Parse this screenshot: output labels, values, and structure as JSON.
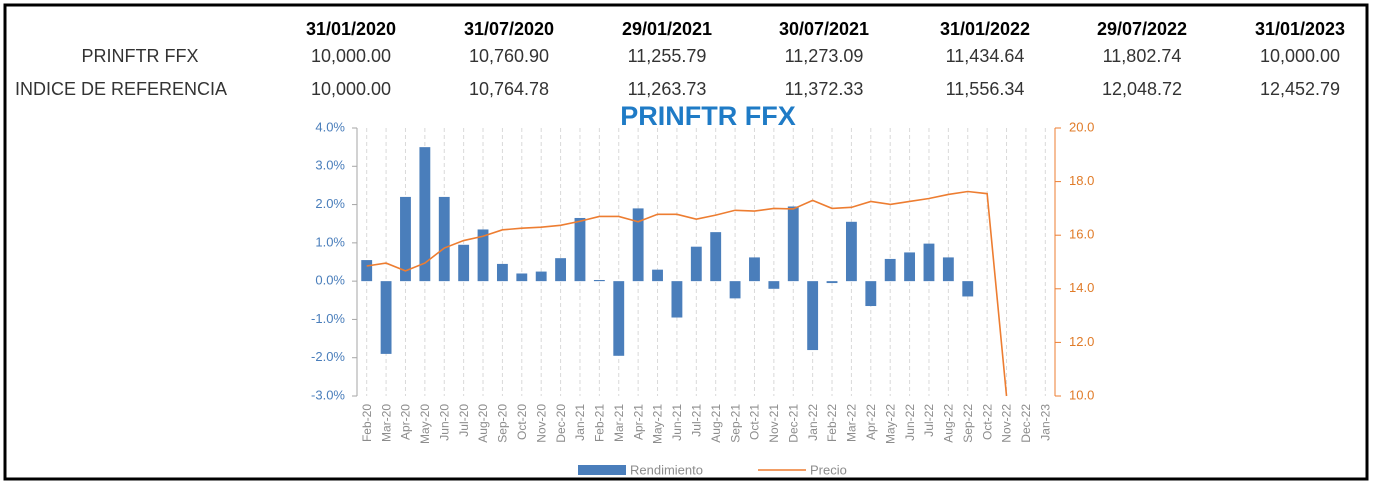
{
  "table": {
    "columns": [
      "31/01/2020",
      "31/07/2020",
      "29/01/2021",
      "30/07/2021",
      "31/01/2022",
      "29/07/2022",
      "31/01/2023"
    ],
    "rows": [
      {
        "label": "PRINFTR FFX",
        "values": [
          "10,000.00",
          "10,760.90",
          "11,255.79",
          "11,273.09",
          "11,434.64",
          "11,802.74",
          "10,000.00"
        ]
      },
      {
        "label": "INDICE DE REFERENCIA",
        "values": [
          "10,000.00",
          "10,764.78",
          "11,263.73",
          "11,372.33",
          "11,556.34",
          "12,048.72",
          "12,452.79"
        ]
      }
    ]
  },
  "chart_data": {
    "type": "bar_line",
    "title": "PRINFTR FFX",
    "categories": [
      "Feb-20",
      "Mar-20",
      "Apr-20",
      "May-20",
      "Jun-20",
      "Jul-20",
      "Aug-20",
      "Sep-20",
      "Oct-20",
      "Nov-20",
      "Dec-20",
      "Jan-21",
      "Feb-21",
      "Mar-21",
      "Apr-21",
      "May-21",
      "Jun-21",
      "Jul-21",
      "Aug-21",
      "Sep-21",
      "Oct-21",
      "Nov-21",
      "Dec-21",
      "Jan-22",
      "Feb-22",
      "Mar-22",
      "Apr-22",
      "May-22",
      "Jun-22",
      "Jul-22",
      "Aug-22",
      "Sep-22",
      "Oct-22",
      "Nov-22",
      "Dec-22",
      "Jan-23"
    ],
    "series": [
      {
        "name": "Rendimiento",
        "type": "bar",
        "color": "#4a7ebb",
        "values": [
          0.55,
          -1.9,
          2.2,
          3.5,
          2.2,
          0.95,
          1.35,
          0.45,
          0.2,
          0.25,
          0.6,
          1.65,
          0.03,
          -1.95,
          1.9,
          0.3,
          -0.95,
          0.9,
          1.28,
          -0.45,
          0.62,
          -0.2,
          1.95,
          -1.8,
          -0.05,
          1.55,
          -0.65,
          0.58,
          0.75,
          0.98,
          0.62,
          -0.4,
          null,
          null,
          null,
          null
        ]
      },
      {
        "name": "Precio",
        "type": "line",
        "axis": "y2",
        "color": "#ed7d31",
        "values": [
          14.85,
          14.96,
          14.67,
          14.96,
          15.52,
          15.8,
          15.96,
          16.2,
          16.26,
          16.3,
          16.37,
          16.52,
          16.7,
          16.7,
          16.5,
          16.78,
          16.78,
          16.6,
          16.75,
          16.93,
          16.9,
          17.0,
          16.98,
          17.3,
          17.0,
          17.04,
          17.26,
          17.15,
          17.26,
          17.37,
          17.52,
          17.63,
          17.55,
          10,
          null,
          null
        ]
      }
    ],
    "ylim": [
      -3,
      4
    ],
    "yticks": [
      {
        "value": -3,
        "label": "-3.0%"
      },
      {
        "value": -2,
        "label": "-2.0%"
      },
      {
        "value": -1,
        "label": "-1.0%"
      },
      {
        "value": 0,
        "label": "0.0%"
      },
      {
        "value": 1,
        "label": "1.0%"
      },
      {
        "value": 2,
        "label": "2.0%"
      },
      {
        "value": 3,
        "label": "3.0%"
      },
      {
        "value": 4,
        "label": "4.0%"
      }
    ],
    "y2lim": [
      10,
      20
    ],
    "y2ticks": [
      {
        "value": 10,
        "label": "10.0"
      },
      {
        "value": 12,
        "label": "12.0"
      },
      {
        "value": 14,
        "label": "14.0"
      },
      {
        "value": 16,
        "label": "16.0"
      },
      {
        "value": 18,
        "label": "18.0"
      },
      {
        "value": 20,
        "label": "20.0"
      }
    ],
    "legend": "bottom"
  }
}
